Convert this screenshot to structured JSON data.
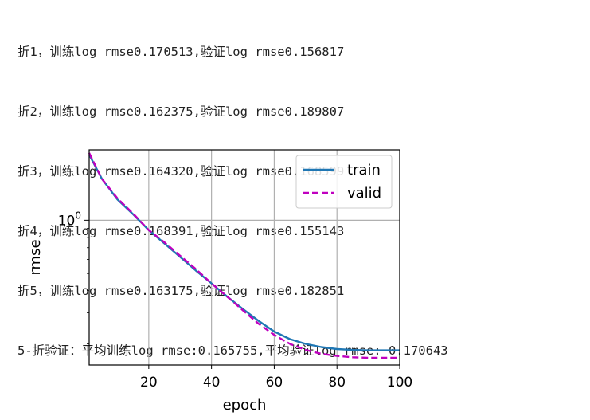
{
  "console": {
    "lines": [
      "折1，训练log rmse0.170513,验证log rmse0.156817",
      "折2，训练log rmse0.162375,验证log rmse0.189807",
      "折3，训练log rmse0.164320,验证log rmse0.168599",
      "折4，训练log rmse0.168391,验证log rmse0.155143",
      "折5，训练log rmse0.163175,验证log rmse0.182851",
      "5-折验证：平均训练log rmse:0.165755,平均验证log rmse: 0.170643"
    ]
  },
  "chart_data": {
    "type": "line",
    "xlabel": "epoch",
    "ylabel": "rmse",
    "xlim": [
      1,
      100
    ],
    "ylim": [
      0.152,
      2.5
    ],
    "yscale": "log",
    "xticks": [
      20,
      40,
      60,
      80,
      100
    ],
    "xtick_labels": [
      "20",
      "40",
      "60",
      "80",
      "100"
    ],
    "ytick_major_label": "10^0",
    "ytick_base": "10",
    "ytick_exp": "0",
    "grid": true,
    "legend_position": "top-right",
    "x": [
      1,
      5,
      10,
      15,
      20,
      25,
      30,
      35,
      40,
      45,
      50,
      55,
      60,
      65,
      70,
      75,
      80,
      85,
      90,
      95,
      100
    ],
    "series": [
      {
        "name": "train",
        "style": "solid",
        "color": "#1f77b4",
        "values": [
          2.35,
          1.72,
          1.31,
          1.08,
          0.88,
          0.74,
          0.62,
          0.52,
          0.44,
          0.37,
          0.315,
          0.27,
          0.235,
          0.213,
          0.2,
          0.192,
          0.187,
          0.185,
          0.184,
          0.184,
          0.184
        ]
      },
      {
        "name": "valid",
        "style": "dashed",
        "color": "#bf00bf",
        "values": [
          2.4,
          1.72,
          1.33,
          1.09,
          0.88,
          0.75,
          0.63,
          0.53,
          0.44,
          0.37,
          0.31,
          0.26,
          0.225,
          0.2,
          0.185,
          0.176,
          0.171,
          0.168,
          0.167,
          0.167,
          0.167
        ]
      }
    ]
  }
}
